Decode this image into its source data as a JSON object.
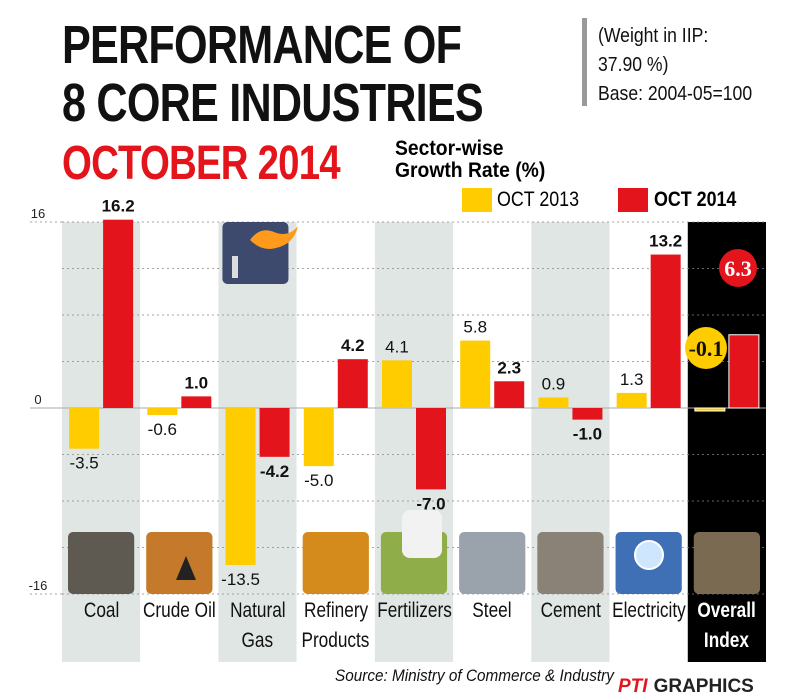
{
  "header": {
    "title_line1": "PERFORMANCE OF",
    "title_line2": "8 CORE INDUSTRIES",
    "title_line3": "OCTOBER 2014",
    "note_line1": "(Weight in IIP:",
    "note_line2": "37.90 %)",
    "note_line3": "Base: 2004-05=100",
    "subtitle_line1": "Sector-wise",
    "subtitle_line2": "Growth Rate (%)"
  },
  "footer": {
    "source": "Source: Ministry of Commerce & Industry",
    "brand_pti": "PTI",
    "brand_graphics": "GRAPHICS"
  },
  "colors": {
    "oct2013": "#ffcc00",
    "oct2014": "#e3141b",
    "title_red": "#e3141b",
    "band_light": "#dfe6e4",
    "overall_bg": "#000000"
  },
  "chart_data": {
    "type": "bar",
    "subtitle": "Sector-wise Growth Rate (%)",
    "categories": [
      "Coal",
      "Crude Oil",
      "Natural Gas",
      "Refinery Products",
      "Fertilizers",
      "Steel",
      "Cement",
      "Electricity",
      "Overall Index"
    ],
    "category_lines": [
      [
        "Coal"
      ],
      [
        "Crude Oil"
      ],
      [
        "Natural",
        "Gas"
      ],
      [
        "Refinery",
        "Products"
      ],
      [
        "Fertilizers"
      ],
      [
        "Steel"
      ],
      [
        "Cement"
      ],
      [
        "Electricity"
      ],
      [
        "Overall",
        "Index"
      ]
    ],
    "category_icons": [
      "coal-icon",
      "oil-pump-icon",
      "gas-flare-icon",
      "fuel-nozzle-icon",
      "fertilizer-sack-icon",
      "steel-rods-icon",
      "cement-icon",
      "light-bulb-icon",
      "construction-icon"
    ],
    "series": [
      {
        "name": "OCT 2013",
        "values": [
          -3.5,
          -0.6,
          -13.5,
          -5.0,
          4.1,
          5.8,
          0.9,
          1.3,
          -0.1
        ],
        "labels": [
          "-3.5",
          "-0.6",
          "-13.5",
          "-5.0",
          "4.1",
          "5.8",
          "0.9",
          "1.3",
          "-0.1"
        ]
      },
      {
        "name": "OCT 2014",
        "values": [
          16.2,
          1.0,
          -4.2,
          4.2,
          -7.0,
          2.3,
          -1.0,
          13.2,
          6.3
        ],
        "labels": [
          "16.2",
          "1.0",
          "-4.2",
          "4.2",
          "-7.0",
          "2.3",
          "-1.0",
          "13.2",
          "6.3"
        ]
      }
    ],
    "yticks": [
      16,
      0,
      -16
    ],
    "ytick_labels": [
      "16",
      "0",
      "-16"
    ],
    "ylim": [
      -16,
      16
    ],
    "grid": true,
    "legend": "top-right"
  }
}
